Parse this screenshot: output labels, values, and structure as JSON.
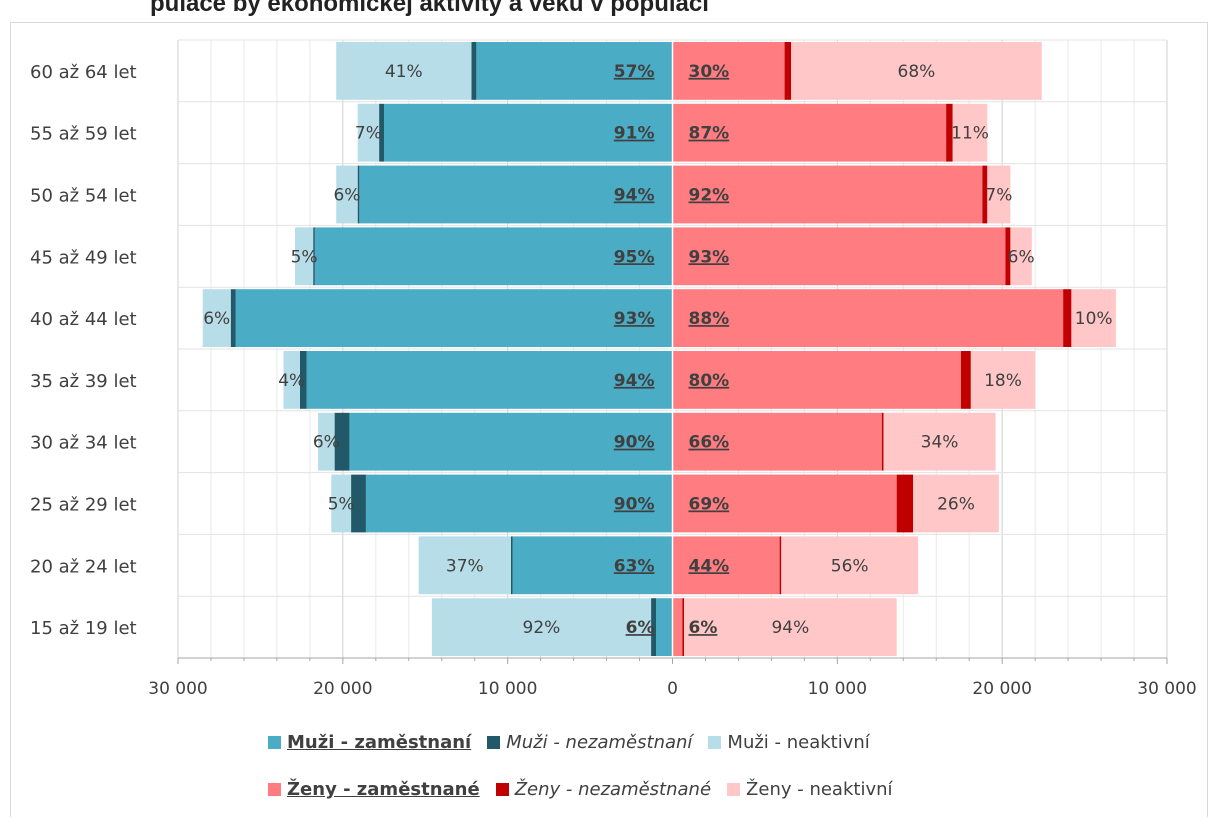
{
  "title": "pulace by ekonomickej aktivity a veku v populaci",
  "chart_data": {
    "type": "bar",
    "orientation": "horizontal-pyramid",
    "categories": [
      "60 až 64 let",
      "55 až 59 let",
      "50 až 54 let",
      "45 až 49 let",
      "40 až 44 let",
      "35 až 39 let",
      "30 až 34 let",
      "25 až 29 let",
      "20 až 24 let",
      "15 až 19 let"
    ],
    "xlim": [
      -30000,
      30000
    ],
    "xticks": [
      -30000,
      -20000,
      -10000,
      0,
      10000,
      20000,
      30000
    ],
    "xtick_labels": [
      "30 000",
      "20 000",
      "10 000",
      "0",
      "10 000",
      "20 000",
      "30 000"
    ],
    "grid": true,
    "legend_position": "bottom",
    "series": [
      {
        "name": "Muži - zaměstnaní",
        "side": "left",
        "color": "#4bacc6",
        "values": [
          11900,
          17500,
          19000,
          21700,
          26500,
          22200,
          19600,
          18600,
          9700,
          1000
        ]
      },
      {
        "name": "Muži - nezaměstnaní",
        "side": "left",
        "color": "#215968",
        "values": [
          300,
          300,
          100,
          100,
          300,
          400,
          900,
          900,
          100,
          300
        ]
      },
      {
        "name": "Muži - neaktivní",
        "side": "left",
        "color": "#b7dde8",
        "values": [
          8200,
          1300,
          1300,
          1100,
          1700,
          1000,
          1000,
          1200,
          5600,
          13300
        ]
      },
      {
        "name": "Ženy - zaměstnané",
        "side": "right",
        "color": "#ff7c80",
        "values": [
          6800,
          16600,
          18800,
          20200,
          23700,
          17500,
          12700,
          13600,
          6500,
          600
        ]
      },
      {
        "name": "Ženy - nezaměstnané",
        "side": "right",
        "color": "#c00000",
        "values": [
          400,
          400,
          300,
          300,
          500,
          600,
          100,
          1000,
          100,
          100
        ]
      },
      {
        "name": "Ženy - neaktivní",
        "side": "right",
        "color": "#ffc7c7",
        "values": [
          15200,
          2100,
          1400,
          1300,
          2700,
          3900,
          6800,
          5200,
          8300,
          12900
        ]
      }
    ],
    "left_segment_labels": {
      "employed_share": [
        "57%",
        "91%",
        "94%",
        "95%",
        "93%",
        "94%",
        "90%",
        "90%",
        "63%",
        "6%"
      ],
      "inactive_share": [
        "41%",
        "7%",
        "6%",
        "5%",
        "6%",
        "4%",
        "6%",
        "5%",
        "37%",
        "92%"
      ]
    },
    "right_segment_labels": {
      "employed_share": [
        "30%",
        "87%",
        "92%",
        "93%",
        "88%",
        "80%",
        "66%",
        "69%",
        "44%",
        "6%"
      ],
      "inactive_share": [
        "68%",
        "11%",
        "7%",
        "6%",
        "10%",
        "18%",
        "34%",
        "26%",
        "56%",
        "94%"
      ]
    }
  },
  "legend": {
    "row1": [
      {
        "label": "Muži -  zaměstnaní",
        "color": "#4bacc6",
        "style": "bold"
      },
      {
        "label": "Muži -  nezaměstnaní",
        "color": "#215968",
        "style": "italic"
      },
      {
        "label": "Muži -  neaktivní",
        "color": "#b7dde8",
        "style": "normal"
      }
    ],
    "row2": [
      {
        "label": "Ženy -  zaměstnané",
        "color": "#ff7c80",
        "style": "bold"
      },
      {
        "label": "Ženy -  nezaměstnané",
        "color": "#c00000",
        "style": "italic"
      },
      {
        "label": "Ženy -  neaktivní",
        "color": "#ffc7c7",
        "style": "normal"
      }
    ]
  }
}
